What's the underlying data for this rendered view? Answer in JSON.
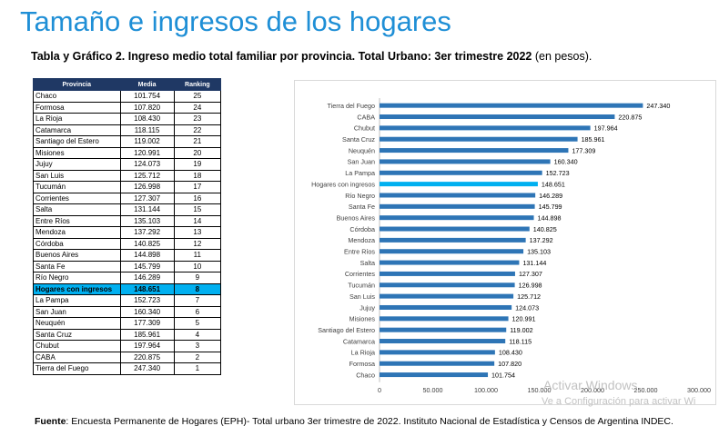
{
  "header": {
    "title": "Tamaño e ingresos de los hogares",
    "subtitle_bold": "Tabla y Gráfico 2. Ingreso medio total familiar por provincia. Total Urbano: 3er trimestre 2022",
    "subtitle_rest": " (en pesos)."
  },
  "table": {
    "headers": [
      "Provincia",
      "Media",
      "Ranking"
    ],
    "highlight_row": "Hogares con ingresos",
    "highlight_color": "#00b0f0",
    "header_color": "#1f3864",
    "rows": [
      [
        "Chaco",
        "101.754",
        "25"
      ],
      [
        "Formosa",
        "107.820",
        "24"
      ],
      [
        "La Rioja",
        "108.430",
        "23"
      ],
      [
        "Catamarca",
        "118.115",
        "22"
      ],
      [
        "Santiago del Estero",
        "119.002",
        "21"
      ],
      [
        "Misiones",
        "120.991",
        "20"
      ],
      [
        "Jujuy",
        "124.073",
        "19"
      ],
      [
        "San Luis",
        "125.712",
        "18"
      ],
      [
        "Tucumán",
        "126.998",
        "17"
      ],
      [
        "Corrientes",
        "127.307",
        "16"
      ],
      [
        "Salta",
        "131.144",
        "15"
      ],
      [
        "Entre Ríos",
        "135.103",
        "14"
      ],
      [
        "Mendoza",
        "137.292",
        "13"
      ],
      [
        "Córdoba",
        "140.825",
        "12"
      ],
      [
        "Buenos Aires",
        "144.898",
        "11"
      ],
      [
        "Santa Fe",
        "145.799",
        "10"
      ],
      [
        "Río Negro",
        "146.289",
        "9"
      ],
      [
        "Hogares con ingresos",
        "148.651",
        "8"
      ],
      [
        "La Pampa",
        "152.723",
        "7"
      ],
      [
        "San Juan",
        "160.340",
        "6"
      ],
      [
        "Neuquén",
        "177.309",
        "5"
      ],
      [
        "Santa Cruz",
        "185.961",
        "4"
      ],
      [
        "Chubut",
        "197.964",
        "3"
      ],
      [
        "CABA",
        "220.875",
        "2"
      ],
      [
        "Tierra del Fuego",
        "247.340",
        "1"
      ]
    ]
  },
  "chart_data": {
    "type": "bar",
    "orientation": "horizontal",
    "categories": [
      "Tierra del Fuego",
      "CABA",
      "Chubut",
      "Santa Cruz",
      "Neuquén",
      "San Juan",
      "La Pampa",
      "Hogares con ingresos",
      "Río Negro",
      "Santa Fe",
      "Buenos Aires",
      "Córdoba",
      "Mendoza",
      "Entre Ríos",
      "Salta",
      "Corrientes",
      "Tucumán",
      "San Luis",
      "Jujuy",
      "Misiones",
      "Santiago del Estero",
      "Catamarca",
      "La Rioja",
      "Formosa",
      "Chaco"
    ],
    "values": [
      247340,
      220875,
      197964,
      185961,
      177309,
      160340,
      152723,
      148651,
      146289,
      145799,
      144898,
      140825,
      137292,
      135103,
      131144,
      127307,
      126998,
      125712,
      124073,
      120991,
      119002,
      118115,
      108430,
      107820,
      101754
    ],
    "value_labels": [
      "247.340",
      "220.875",
      "197.964",
      "185.961",
      "177.309",
      "160.340",
      "152.723",
      "148.651",
      "146.289",
      "145.799",
      "144.898",
      "140.825",
      "137.292",
      "135.103",
      "131.144",
      "127.307",
      "126.998",
      "125.712",
      "124.073",
      "120.991",
      "119.002",
      "118.115",
      "108.430",
      "107.820",
      "101.754"
    ],
    "xlim": [
      0,
      300000
    ],
    "xticks": [
      "0",
      "50.000",
      "100.000",
      "150.000",
      "200.000",
      "250.000",
      "300.000"
    ],
    "bar_color": "#2e75b6",
    "highlight_category": "Hogares con ingresos",
    "highlight_color": "#00b0f0",
    "grid": false,
    "legend": "none"
  },
  "footer": {
    "source_label": "Fuente",
    "source_text": ": Encuesta Permanente de Hogares (EPH)- Total urbano 3er trimestre de 2022. Instituto Nacional de Estadística y Censos de Argentina INDEC."
  },
  "watermark": {
    "line1": "Activar Windows",
    "line2": "Ve a Configuración para activar Wi"
  }
}
